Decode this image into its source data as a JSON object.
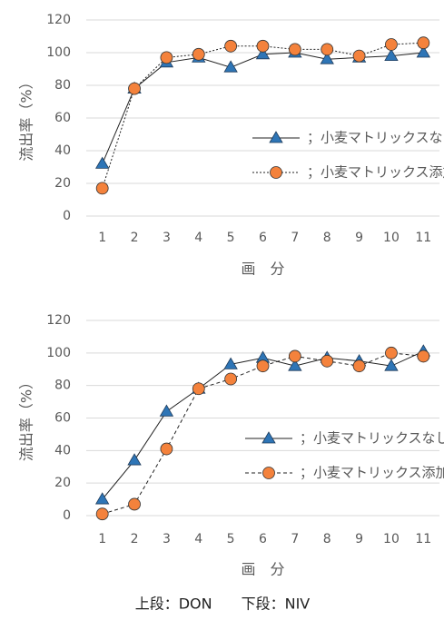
{
  "chart_data": [
    {
      "type": "line",
      "x_label": "画　分",
      "y_label": "流出率（%）",
      "categories": [
        "1",
        "2",
        "3",
        "4",
        "5",
        "6",
        "7",
        "8",
        "9",
        "10",
        "11"
      ],
      "ylim": [
        0,
        120
      ],
      "yticks": [
        0,
        20,
        40,
        60,
        80,
        100,
        120
      ],
      "grid": true,
      "series": [
        {
          "name": "；小麦マトリックスなし",
          "color": "#2e75b6",
          "marker": "triangle",
          "dash": "none",
          "values": [
            32,
            78,
            94,
            97,
            91,
            99,
            100,
            96,
            97,
            98,
            100
          ]
        },
        {
          "name": "；小麦マトリックス添加",
          "color": "#f4823c",
          "marker": "circle",
          "dash": "2,2",
          "values": [
            17,
            78,
            97,
            99,
            104,
            104,
            102,
            102,
            98,
            105,
            106
          ]
        }
      ]
    },
    {
      "type": "line",
      "x_label": "画　分",
      "y_label": "流出率（%）",
      "categories": [
        "1",
        "2",
        "3",
        "4",
        "5",
        "6",
        "7",
        "8",
        "9",
        "10",
        "11"
      ],
      "ylim": [
        0,
        120
      ],
      "yticks": [
        0,
        20,
        40,
        60,
        80,
        100,
        120
      ],
      "grid": true,
      "series": [
        {
          "name": "；小麦マトリックスなし",
          "color": "#2e75b6",
          "marker": "triangle",
          "dash": "none",
          "values": [
            10,
            34,
            64,
            78,
            93,
            97,
            92,
            97,
            95,
            92,
            101
          ]
        },
        {
          "name": "；小麦マトリックス添加",
          "color": "#f4823c",
          "marker": "circle",
          "dash": "4,3",
          "values": [
            1,
            7,
            41,
            78,
            84,
            92,
            98,
            95,
            92,
            100,
            98
          ]
        }
      ]
    }
  ],
  "caption": "上段：DON　　下段：NIV"
}
